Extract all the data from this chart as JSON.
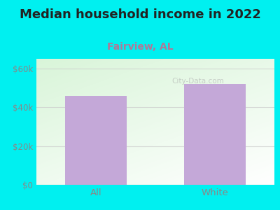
{
  "title": "Median household income in 2022",
  "subtitle": "Fairview, AL",
  "categories": [
    "All",
    "White"
  ],
  "values": [
    46000,
    52000
  ],
  "bar_color": "#c4a8d8",
  "title_fontsize": 13,
  "subtitle_fontsize": 10,
  "subtitle_color": "#b07898",
  "tick_label_color": "#888888",
  "background_color": "#00f0f0",
  "ylim": [
    0,
    65000
  ],
  "yticks": [
    0,
    20000,
    40000,
    60000
  ],
  "ytick_labels": [
    "$0",
    "$20k",
    "$40k",
    "$60k"
  ],
  "watermark": "City-Data.com",
  "title_color": "#222222"
}
